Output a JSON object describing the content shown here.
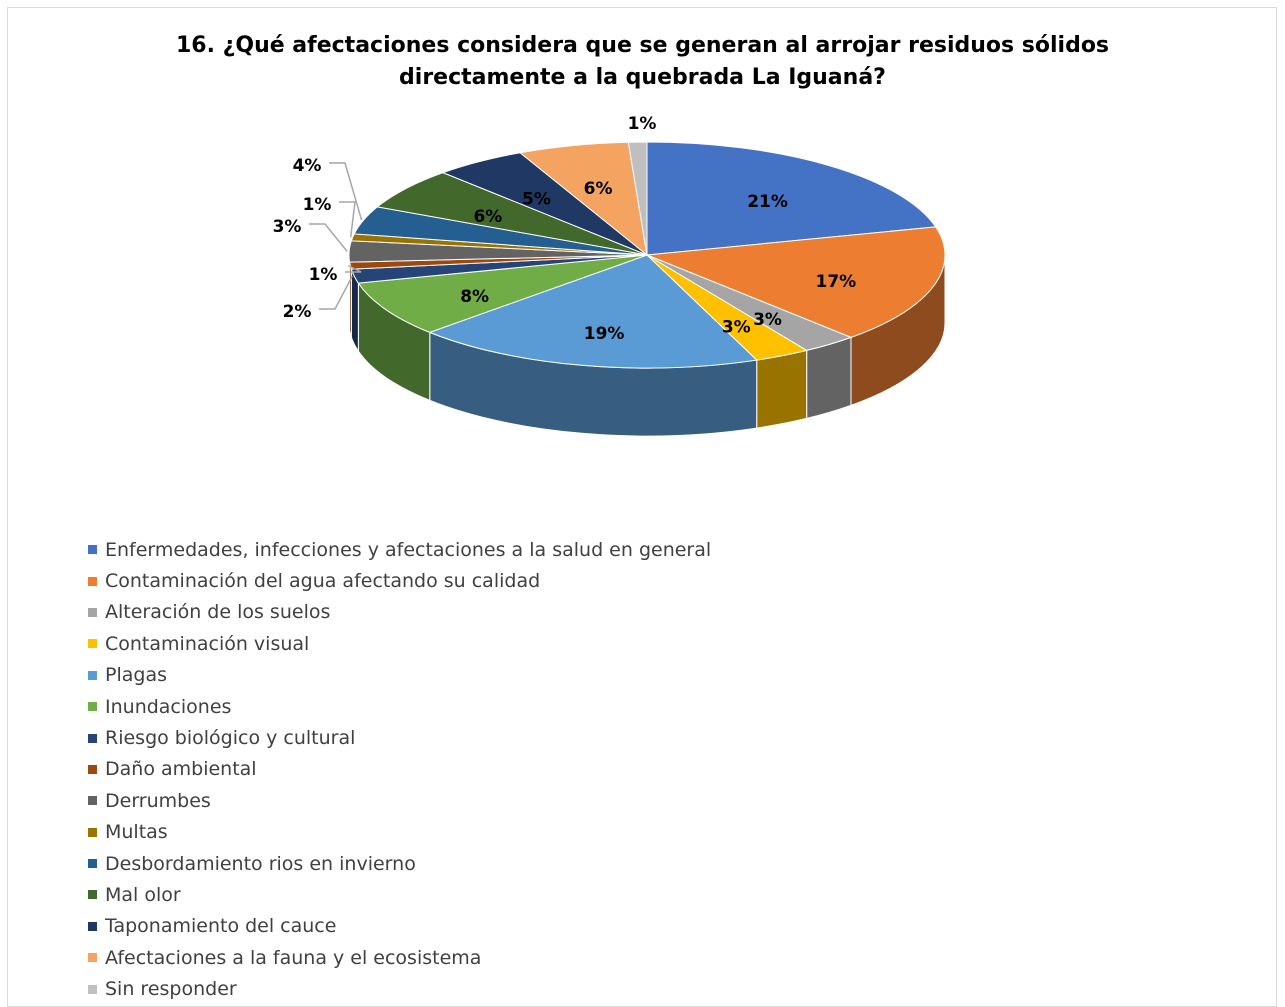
{
  "chart_data": {
    "type": "pie",
    "title_lines": [
      "16. ¿Qué afectaciones considera que se generan al arrojar residuos sólidos",
      "directamente a la quebrada La Iguaná?"
    ],
    "legend_position": "bottom",
    "slices": [
      {
        "label": "Enfermedades, infecciones y afectaciones a la salud en general",
        "value": 21,
        "display": "21%",
        "color": "#4472C4"
      },
      {
        "label": "Contaminación del agua afectando su calidad",
        "value": 17,
        "display": "17%",
        "color": "#ED7D31"
      },
      {
        "label": "Alteración de los suelos",
        "value": 3,
        "display": "3%",
        "color": "#A5A5A5"
      },
      {
        "label": "Contaminación visual",
        "value": 3,
        "display": "3%",
        "color": "#FFC000"
      },
      {
        "label": "Plagas",
        "value": 19,
        "display": "19%",
        "color": "#5B9BD5"
      },
      {
        "label": "Inundaciones",
        "value": 8,
        "display": "8%",
        "color": "#70AD47"
      },
      {
        "label": "Riesgo biológico y cultural",
        "value": 2,
        "display": "2%",
        "color": "#264478"
      },
      {
        "label": "Daño ambiental",
        "value": 1,
        "display": "1%",
        "color": "#9E480E"
      },
      {
        "label": "Derrumbes",
        "value": 3,
        "display": "3%",
        "color": "#636363"
      },
      {
        "label": "Multas",
        "value": 1,
        "display": "1%",
        "color": "#997300"
      },
      {
        "label": "Desbordamiento rios en invierno",
        "value": 4,
        "display": "4%",
        "color": "#255E91"
      },
      {
        "label": "Mal olor",
        "value": 6,
        "display": "6%",
        "color": "#43682B"
      },
      {
        "label": "Taponamiento del cauce",
        "value": 5,
        "display": "5%",
        "color": "#203864"
      },
      {
        "label": "Afectaciones a la fauna y el ecosistema",
        "value": 6,
        "display": "6%",
        "color": "#F4A460"
      },
      {
        "label": "Sin responder",
        "value": 1,
        "display": "1%",
        "color": "#BFBFBF"
      }
    ]
  }
}
